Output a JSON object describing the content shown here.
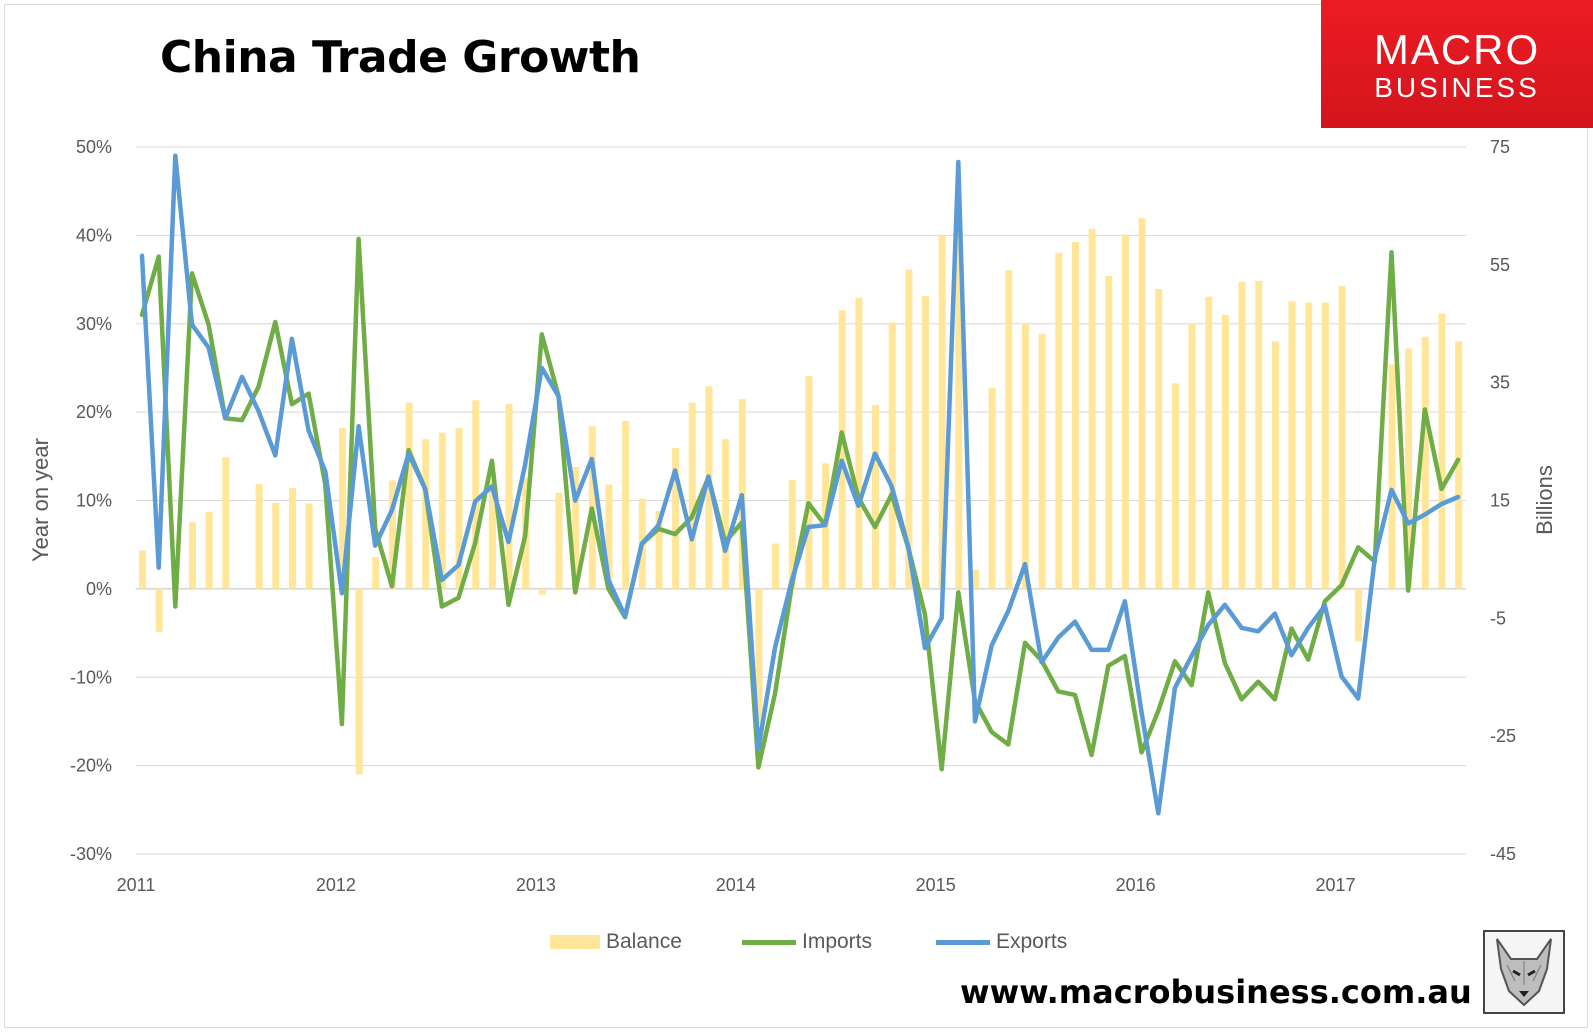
{
  "title": "China Trade Growth",
  "logo": {
    "line1": "MACRO",
    "line2": "BUSINESS",
    "color": "#e31b23"
  },
  "footer_url": "www.macrobusiness.com.au",
  "wolf_icon": "wolf-head-icon",
  "chart_data": {
    "type": "bar+line",
    "y_left": {
      "label": "Year on year",
      "ticks": [
        "50%",
        "40%",
        "30%",
        "20%",
        "10%",
        "0%",
        "-10%",
        "-20%",
        "-30%"
      ],
      "range": [
        -30,
        50
      ]
    },
    "y_right": {
      "label": "Billions",
      "ticks": [
        "75",
        "55",
        "35",
        "15",
        "-5",
        "-25",
        "-45"
      ],
      "range": [
        -45,
        75
      ]
    },
    "x_ticks": [
      "2011",
      "2012",
      "2013",
      "2014",
      "2015",
      "2016",
      "2017"
    ],
    "x_range": [
      "2011-01",
      "2017-07"
    ],
    "grid": true,
    "legend_position": "bottom",
    "series": [
      {
        "name": "Balance",
        "type": "bar",
        "axis": "right",
        "color": "#ffe699",
        "values": [
          6.5,
          -7.3,
          null,
          11.3,
          13.1,
          22.3,
          null,
          17.8,
          14.6,
          17.1,
          14.5,
          null,
          27.3,
          -31.5,
          5.4,
          18.4,
          31.6,
          25.4,
          26.5,
          27.3,
          32.0,
          19.7,
          31.4,
          18.8,
          -1.0,
          16.3,
          20.7,
          27.6,
          17.7,
          28.5,
          15.3,
          13.2,
          23.9,
          31.6,
          34.4,
          25.4,
          32.2,
          -23.0,
          7.7,
          18.5,
          36.1,
          21.3,
          47.3,
          49.4,
          31.2,
          45.2,
          54.2,
          49.7,
          60.0,
          61.0,
          3.2,
          34.1,
          54.1,
          45.0,
          43.3,
          57.0,
          58.9,
          61.1,
          53.1,
          60.1,
          62.9,
          50.9,
          34.9,
          45.0,
          49.6,
          46.5,
          52.1,
          52.3,
          42.0,
          48.8,
          48.6,
          48.6,
          51.4,
          -8.9,
          null,
          38.1,
          40.8,
          42.8,
          46.7,
          42.0
        ]
      },
      {
        "name": "Imports",
        "type": "line",
        "axis": "left",
        "color": "#70ad47",
        "values": [
          31,
          37.6,
          -2.0,
          35.7,
          29.9,
          19.3,
          19.1,
          22.9,
          30.2,
          20.9,
          22.1,
          11.8,
          -15.3,
          39.6,
          6.8,
          0.3,
          15.7,
          11.3,
          -2.0,
          -1.0,
          5.2,
          14.5,
          -1.8,
          6.0,
          28.8,
          21.8,
          -0.4,
          9.1,
          0.0,
          -3.2,
          5.1,
          6.8,
          6.2,
          8.1,
          12.6,
          5.3,
          7.5,
          -20.2,
          -11.8,
          0.3,
          9.7,
          7.2,
          17.7,
          10.3,
          7.0,
          10.7,
          4.6,
          -2.9,
          -20.4,
          -0.4,
          -12.7,
          -16.2,
          -17.6,
          -6.1,
          -8.1,
          -11.6,
          -12.0,
          -18.8,
          -8.7,
          -7.6,
          -18.5,
          -13.8,
          -8.2,
          -10.9,
          -0.4,
          -8.4,
          -12.5,
          -10.5,
          -12.5,
          -4.5,
          -8.0,
          -1.4,
          0.4,
          4.7,
          3.1,
          38.1,
          -0.2,
          20.3,
          11.3,
          14.6
        ],
        "note": "values estimated from the drawn line"
      },
      {
        "name": "Exports",
        "type": "line",
        "axis": "left",
        "color": "#5b9bd5",
        "values": [
          37.7,
          2.4,
          49.0,
          29.9,
          27.3,
          19.3,
          24.0,
          20.1,
          15.1,
          28.3,
          17.9,
          13.3,
          -0.5,
          18.4,
          4.9,
          8.9,
          15.3,
          11.3,
          1.0,
          2.7,
          9.9,
          11.6,
          5.3,
          14.1,
          25.0,
          21.8,
          10.0,
          14.7,
          1.0,
          -3.1,
          5.1,
          7.2,
          13.4,
          5.6,
          12.7,
          4.3,
          10.6,
          -18.1,
          -6.6,
          0.9,
          7.0,
          7.2,
          14.5,
          9.4,
          15.3,
          11.6,
          4.7,
          -6.7,
          -3.3,
          48.3,
          -15.0,
          -6.4,
          -2.5,
          2.8,
          -8.3,
          -5.5,
          -3.7,
          -6.9,
          -6.9,
          -1.4,
          -14.0,
          -25.4,
          -11.2,
          -7.6,
          -4.1,
          -1.8,
          -4.4,
          -4.8,
          -2.8,
          -7.5,
          -4.4,
          -1.9,
          -9.9,
          -12.4,
          3.5,
          11.2,
          7.4,
          8.4,
          9.6,
          10.4
        ],
        "note": "values estimated from the drawn line"
      }
    ]
  }
}
